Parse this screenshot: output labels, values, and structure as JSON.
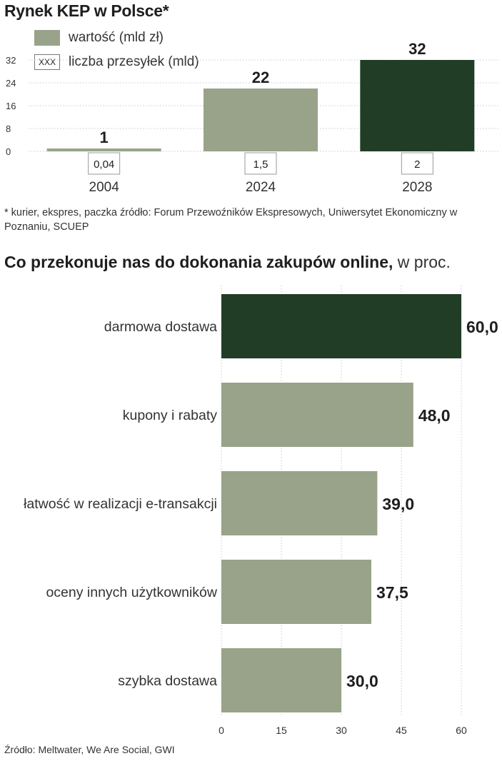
{
  "chart1": {
    "title": "Rynek KEP w Polsce*",
    "legend": {
      "value_label": "wartość (mld zł)",
      "box_sample": "XXX",
      "count_label": "liczba przesyłek (mld)"
    },
    "footnote": "* kurier, ekspres, paczka źródło: Forum Przewoźników Ekspresowych, Uniwersytet Ekonomiczny w Poznaniu, SCUEP"
  },
  "chart2": {
    "title_bold": "Co przekonuje nas do dokonania zakupów online,",
    "title_unit": " w proc.",
    "source": "Źródło: Meltwater, We Are Social, GWI"
  },
  "colors": {
    "sage": "#98a38a",
    "dark_green": "#213d26"
  },
  "chart_data": [
    {
      "type": "bar",
      "title": "Rynek KEP w Polsce*",
      "categories": [
        "2004",
        "2024",
        "2028"
      ],
      "series": [
        {
          "name": "wartość (mld zł)",
          "values": [
            1,
            22,
            32
          ],
          "labels": [
            "1",
            "22",
            "32"
          ]
        },
        {
          "name": "liczba przesyłek (mld)",
          "values": [
            0.04,
            1.5,
            2
          ],
          "labels": [
            "0,04",
            "1,5",
            "2"
          ]
        }
      ],
      "highlight_index": 2,
      "yticks": [
        0,
        8,
        16,
        24,
        32
      ],
      "ylim": [
        0,
        32
      ],
      "grid": true,
      "xlabel": "",
      "ylabel": ""
    },
    {
      "type": "bar",
      "orientation": "horizontal",
      "title": "Co przekonuje nas do dokonania zakupów online, w proc.",
      "categories": [
        "darmowa dostawa",
        "kupony i rabaty",
        "łatwość w realizacji e-transakcji",
        "oceny innych użytkowników",
        "szybka dostawa"
      ],
      "values": [
        60.0,
        48.0,
        39.0,
        37.5,
        30.0
      ],
      "labels": [
        "60,0",
        "48,0",
        "39,0",
        "37,5",
        "30,0"
      ],
      "highlight_index": 0,
      "xticks": [
        0,
        15,
        30,
        45,
        60
      ],
      "xlim": [
        0,
        60
      ],
      "grid": true,
      "xlabel": "",
      "ylabel": ""
    }
  ]
}
